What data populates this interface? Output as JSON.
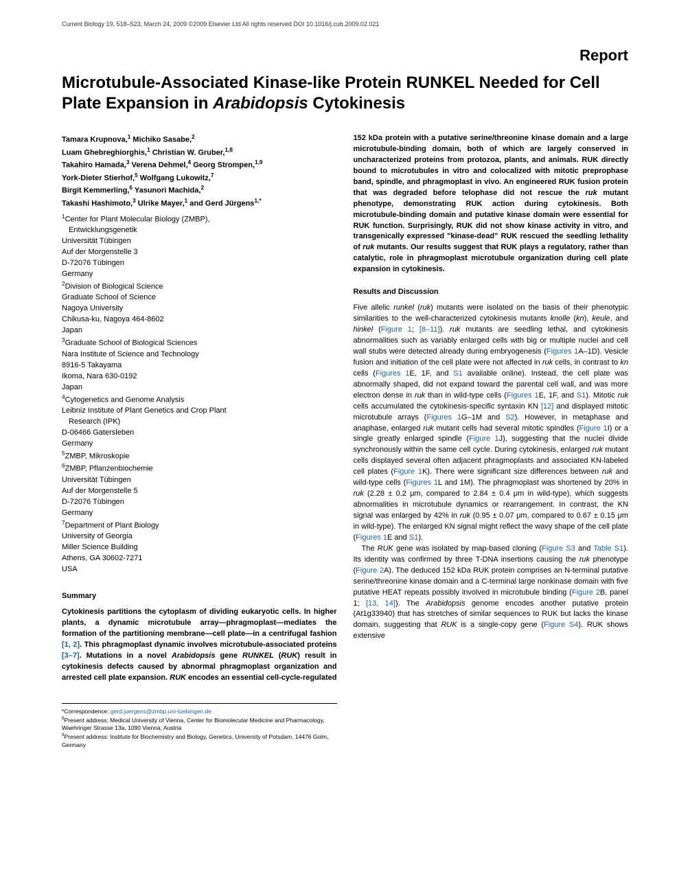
{
  "header": {
    "journal_line": "Current Biology 19, 518–523, March 24, 2009 ©2009 Elsevier Ltd All rights reserved  DOI 10.1016/j.cub.2009.02.021"
  },
  "report_label": "Report",
  "title_part1": "Microtubule-Associated Kinase-like Protein RUNKEL Needed for Cell Plate Expansion in ",
  "title_italic": "Arabidopsis",
  "title_part2": " Cytokinesis",
  "authors_html": "Tamara Krupnova,<sup>1</sup> Michiko Sasabe,<sup>2</sup><br>Luam Ghebreghiorghis,<sup>1</sup> Christian W. Gruber,<sup>1,8</sup><br>Takahiro Hamada,<sup>3</sup> Verena Dehmel,<sup>4</sup> Georg Strompen,<sup>1,9</sup><br>York-Dieter Stierhof,<sup>5</sup> Wolfgang Lukowitz,<sup>7</sup><br>Birgit Kemmerling,<sup>6</sup> Yasunori Machida,<sup>2</sup><br>Takashi Hashimoto,<sup>3</sup> Ulrike Mayer,<sup>1</sup> and Gerd Jürgens<sup>1,*</sup>",
  "affiliations": [
    "<sup>1</sup>Center for Plant Molecular Biology (ZMBP),",
    "  Entwicklungsgenetik",
    "Universität Tübingen",
    "Auf der Morgenstelle 3",
    "D-72076 Tübingen",
    "Germany",
    "<sup>2</sup>Division of Biological Science",
    "Graduate School of Science",
    "Nagoya University",
    "Chikusa-ku, Nagoya 464-8602",
    "Japan",
    "<sup>3</sup>Graduate School of Biological Sciences",
    "Nara Institute of Science and Technology",
    "8916-5 Takayama",
    "Ikoma, Nara 630-0192",
    "Japan",
    "<sup>4</sup>Cytogenetics and Genome Analysis",
    "Leibniz Institute of Plant Genetics and Crop Plant",
    "  Research (IPK)",
    "D-06466 Gatersleben",
    "Germany",
    "<sup>5</sup>ZMBP, Mikroskopie",
    "<sup>6</sup>ZMBP, Pflanzenbiochemie",
    "Universität Tübingen",
    "Auf der Morgenstelle 5",
    "D-72076 Tübingen",
    "Germany",
    "<sup>7</sup>Department of Plant Biology",
    "University of Georgia",
    "Miller Science Building",
    "Athens, GA 30602-7271",
    "USA"
  ],
  "summary_heading": "Summary",
  "summary_html": "Cytokinesis partitions the cytoplasm of dividing eukaryotic cells. In higher plants, a dynamic microtubule array—phragmoplast—mediates the formation of the partitioning membrane—cell plate—in a centrifugal fashion <span class=\"ref-link\">[1, 2]</span>. This phragmoplast dynamic involves microtubule-associated proteins <span class=\"ref-link\">[3–7]</span>. Mutations in a novel <span class=\"italic\">Arabidopsis</span> gene <span class=\"italic\">RUNKEL</span> (<span class=\"italic\">RUK</span>) result in cytokinesis defects caused by abnormal phragmoplast organization and arrested cell plate expansion. <span class=\"italic\">RUK</span> encodes an essential cell-cycle-regulated",
  "col2_summary_cont_html": "152 kDa protein with a putative serine/threonine kinase domain and a large microtubule-binding domain, both of which are largely conserved in uncharacterized proteins from protozoa, plants, and animals. RUK directly bound to microtubules in vitro and colocalized with mitotic preprophase band, spindle, and phragmoplast in vivo. An engineered RUK fusion protein that was degraded before telophase did not rescue the <span class=\"italic\">ruk</span> mutant phenotype, demonstrating RUK action during cytokinesis. Both microtubule-binding domain and putative kinase domain were essential for RUK function. Surprisingly, RUK did not show kinase activity in vitro, and transgenically expressed \"kinase-dead\" RUK rescued the seedling lethality of <span class=\"italic\">ruk</span> mutants. Our results suggest that RUK plays a regulatory, rather than catalytic, role in phragmoplast microtubule organization during cell plate expansion in cytokinesis.",
  "results_heading": "Results and Discussion",
  "results_p1_html": "Five allelic <span class=\"italic\">runkel</span> (<span class=\"italic\">ruk</span>) mutants were isolated on the basis of their phenotypic similarities to the well-characterized cytokinesis mutants <span class=\"italic\">knolle</span> (<span class=\"italic\">kn</span>), <span class=\"italic\">keule</span>, and <span class=\"italic\">hinkel</span> (<span class=\"ref-link\">Figure 1</span>; <span class=\"ref-link\">[8–11]</span>). <span class=\"italic\">ruk</span> mutants are seedling lethal, and cytokinesis abnormalities such as variably enlarged cells with big or multiple nuclei and cell wall stubs were detected already during embryogenesis (<span class=\"ref-link\">Figures 1</span>A–1D). Vesicle fusion and initiation of the cell plate were not affected in <span class=\"italic\">ruk</span> cells, in contrast to <span class=\"italic\">kn</span> cells (<span class=\"ref-link\">Figures 1</span>E, 1F, and <span class=\"ref-link\">S1</span> available online). Instead, the cell plate was abnormally shaped, did not expand toward the parental cell wall, and was more electron dense in <span class=\"italic\">ruk</span> than in wild-type cells (<span class=\"ref-link\">Figures 1</span>E, 1F, and <span class=\"ref-link\">S1</span>). Mitotic <span class=\"italic\">ruk</span> cells accumulated the cytokinesis-specific syntaxin KN <span class=\"ref-link\">[12]</span> and displayed mitotic microtubule arrays (<span class=\"ref-link\">Figures 1</span>G–1M and <span class=\"ref-link\">S2</span>). However, in metaphase and anaphase, enlarged <span class=\"italic\">ruk</span> mutant cells had several mitotic spindles (<span class=\"ref-link\">Figure 1</span>I) or a single greatly enlarged spindle (<span class=\"ref-link\">Figure 1</span>J), suggesting that the nuclei divide synchronously within the same cell cycle. During cytokinesis, enlarged <span class=\"italic\">ruk</span> mutant cells displayed several often adjacent phragmoplasts and associated KN-labeled cell plates (<span class=\"ref-link\">Figure 1</span>K). There were significant size differences between <span class=\"italic\">ruk</span> and wild-type cells (<span class=\"ref-link\">Figures 1</span>L and 1M). The phragmoplast was shortened by 20% in <span class=\"italic\">ruk</span> (2.28 ± 0.2 μm, compared to 2.84 ± 0.4 μm in wild-type), which suggests abnormalities in microtubule dynamics or rearrangement. In contrast, the KN signal was enlarged by 42% in <span class=\"italic\">ruk</span> (0.95 ± 0.07 μm, compared to 0.67 ± 0.15 μm in wild-type). The enlarged KN signal might reflect the wavy shape of the cell plate (<span class=\"ref-link\">Figures 1</span>E and <span class=\"ref-link\">S1</span>).",
  "results_p2_html": "The <span class=\"italic\">RUK</span> gene was isolated by map-based cloning (<span class=\"ref-link\">Figure S3</span> and <span class=\"ref-link\">Table S1</span>). Its identity was confirmed by three T-DNA insertions causing the <span class=\"italic\">ruk</span> phenotype (<span class=\"ref-link\">Figure 2</span>A). The deduced 152 kDa RUK protein comprises an N-terminal putative serine/threonine kinase domain and a C-terminal large nonkinase domain with five putative HEAT repeats possibly involved in microtubule binding (<span class=\"ref-link\">Figure 2</span>B, panel 1; <span class=\"ref-link\">[13, 14]</span>). The <span class=\"italic\">Arabidopsis</span> genome encodes another putative protein (At1g33940) that has stretches of similar sequences to RUK but lacks the kinase domain, suggesting that <span class=\"italic\">RUK</span> is a single-copy gene (<span class=\"ref-link\">Figure S4</span>). RUK shows extensive",
  "footnotes": {
    "correspondence_label": "*Correspondence: ",
    "correspondence_email": "gerd.juergens@zmbp.uni-tuebingen.de",
    "note8": "<sup>8</sup>Present address: Medical University of Vienna, Center for Biomolecular Medicine and Pharmacology, Waehringer Strasse 13a, 1090 Vienna, Austria",
    "note9": "<sup>9</sup>Present address: Institute for Biochemistry and Biology, Genetics, University of Potsdam, 14476 Golm, Germany"
  },
  "colors": {
    "text": "#000000",
    "link": "#1a5fb4",
    "background": "#ffffff"
  }
}
